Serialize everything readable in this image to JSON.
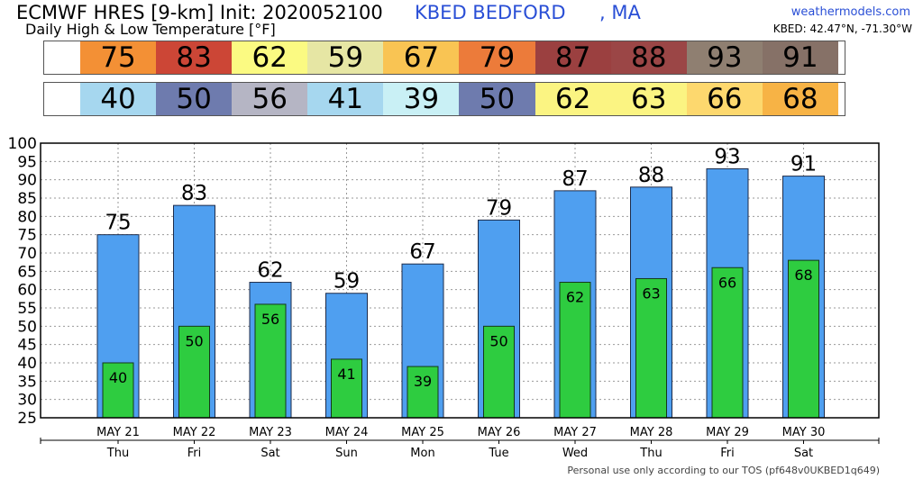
{
  "header": {
    "model": "ECMWF HRES [9-km] Init: 2020052100",
    "station": "KBED BEDFORD",
    "state": ", MA",
    "subtitle": "Daily High & Low Temperature [°F]",
    "site": "weathermodels.com",
    "coords": "KBED: 42.47°N, -71.30°W"
  },
  "footer": {
    "tos": "Personal use only according to our TOS (pf648v0UKBED1q649)"
  },
  "colors": {
    "high_bar": "#4f9ff0",
    "low_bar": "#2ecc40",
    "high_strip": [
      "#f39035",
      "#cc4636",
      "#fbfa82",
      "#e6e6a4",
      "#f9c453",
      "#ec7b3a",
      "#9b4040",
      "#9b4646",
      "#8f7f71",
      "#867167"
    ],
    "low_strip": [
      "#a6d7ef",
      "#6e7bae",
      "#b5b5c4",
      "#a6d7ef",
      "#c9f0f5",
      "#6e7bae",
      "#fbf482",
      "#fbf482",
      "#fdd86e",
      "#f7b345"
    ]
  },
  "chart_data": {
    "type": "bar",
    "title": "Daily High & Low Temperature [°F]",
    "categories": [
      "MAY 21",
      "MAY 22",
      "MAY 23",
      "MAY 24",
      "MAY 25",
      "MAY 26",
      "MAY 27",
      "MAY 28",
      "MAY 29",
      "MAY 30"
    ],
    "days": [
      "Thu",
      "Fri",
      "Sat",
      "Sun",
      "Mon",
      "Tue",
      "Wed",
      "Thu",
      "Fri",
      "Sat"
    ],
    "series": [
      {
        "values": [
          75,
          83,
          62,
          59,
          67,
          79,
          87,
          88,
          93,
          91
        ]
      },
      {
        "values": [
          40,
          50,
          56,
          41,
          39,
          50,
          62,
          63,
          66,
          68
        ]
      }
    ],
    "ylim": [
      25,
      100
    ],
    "yticks": [
      25,
      30,
      35,
      40,
      45,
      50,
      55,
      60,
      65,
      70,
      75,
      80,
      85,
      90,
      95,
      100
    ],
    "grid": true
  }
}
